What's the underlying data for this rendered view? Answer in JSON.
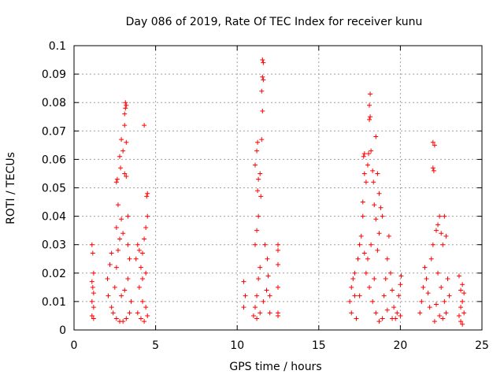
{
  "chart_data": {
    "type": "scatter",
    "title": "Day 086 of 2019, Rate Of TEC Index for receiver kunu",
    "xlabel": "GPS time / hours",
    "ylabel": "ROTI / TECUs",
    "xlim": [
      0,
      25
    ],
    "ylim": [
      0,
      0.1
    ],
    "x_ticks": [
      0,
      5,
      10,
      15,
      20,
      25
    ],
    "x_tick_labels": [
      "0",
      "5",
      "10",
      "15",
      "20",
      "25"
    ],
    "y_ticks": [
      0,
      0.01,
      0.02,
      0.03,
      0.04,
      0.05,
      0.06,
      0.07,
      0.08,
      0.09,
      0.1
    ],
    "y_tick_labels": [
      "0",
      "0.01",
      "0.02",
      "0.03",
      "0.04",
      "0.05",
      "0.06",
      "0.07",
      "0.08",
      "0.09",
      "0.1"
    ],
    "grid": true,
    "marker": "+",
    "color": "#ff0000",
    "series": [
      {
        "name": "ROTI",
        "points": [
          [
            1.1,
            0.03
          ],
          [
            1.15,
            0.027
          ],
          [
            1.2,
            0.02
          ],
          [
            1.1,
            0.017
          ],
          [
            1.2,
            0.013
          ],
          [
            1.1,
            0.01
          ],
          [
            1.2,
            0.008
          ],
          [
            1.1,
            0.005
          ],
          [
            1.2,
            0.004
          ],
          [
            1.15,
            0.015
          ],
          [
            2.05,
            0.018
          ],
          [
            2.2,
            0.023
          ],
          [
            2.3,
            0.027
          ],
          [
            2.1,
            0.012
          ],
          [
            2.3,
            0.008
          ],
          [
            2.5,
            0.015
          ],
          [
            2.6,
            0.022
          ],
          [
            2.7,
            0.028
          ],
          [
            2.8,
            0.032
          ],
          [
            2.6,
            0.036
          ],
          [
            2.7,
            0.044
          ],
          [
            2.6,
            0.052
          ],
          [
            2.65,
            0.053
          ],
          [
            2.8,
            0.061
          ],
          [
            2.85,
            0.057
          ],
          [
            2.9,
            0.067
          ],
          [
            3.0,
            0.063
          ],
          [
            2.9,
            0.039
          ],
          [
            3.0,
            0.034
          ],
          [
            3.1,
            0.072
          ],
          [
            3.1,
            0.076
          ],
          [
            3.15,
            0.078
          ],
          [
            3.2,
            0.079
          ],
          [
            3.15,
            0.08
          ],
          [
            3.2,
            0.066
          ],
          [
            3.1,
            0.055
          ],
          [
            3.2,
            0.054
          ],
          [
            3.3,
            0.04
          ],
          [
            3.3,
            0.03
          ],
          [
            3.4,
            0.025
          ],
          [
            2.4,
            0.006
          ],
          [
            2.6,
            0.004
          ],
          [
            2.8,
            0.003
          ],
          [
            3.0,
            0.003
          ],
          [
            3.2,
            0.004
          ],
          [
            3.4,
            0.006
          ],
          [
            2.9,
            0.012
          ],
          [
            3.1,
            0.014
          ],
          [
            3.3,
            0.018
          ],
          [
            3.5,
            0.01
          ],
          [
            3.8,
            0.025
          ],
          [
            3.9,
            0.03
          ],
          [
            4.0,
            0.028
          ],
          [
            4.1,
            0.022
          ],
          [
            4.2,
            0.027
          ],
          [
            4.3,
            0.032
          ],
          [
            4.4,
            0.036
          ],
          [
            4.5,
            0.04
          ],
          [
            4.45,
            0.047
          ],
          [
            4.5,
            0.048
          ],
          [
            4.3,
            0.072
          ],
          [
            4.0,
            0.015
          ],
          [
            4.2,
            0.01
          ],
          [
            4.4,
            0.008
          ],
          [
            4.5,
            0.005
          ],
          [
            4.3,
            0.003
          ],
          [
            4.1,
            0.004
          ],
          [
            3.9,
            0.006
          ],
          [
            4.2,
            0.018
          ],
          [
            4.4,
            0.02
          ],
          [
            11.1,
            0.008
          ],
          [
            11.2,
            0.012
          ],
          [
            11.3,
            0.018
          ],
          [
            11.4,
            0.022
          ],
          [
            11.1,
            0.03
          ],
          [
            11.2,
            0.035
          ],
          [
            11.3,
            0.04
          ],
          [
            11.25,
            0.049
          ],
          [
            11.3,
            0.053
          ],
          [
            11.1,
            0.058
          ],
          [
            11.2,
            0.063
          ],
          [
            11.25,
            0.066
          ],
          [
            11.4,
            0.055
          ],
          [
            11.45,
            0.047
          ],
          [
            11.5,
            0.067
          ],
          [
            11.55,
            0.077
          ],
          [
            11.5,
            0.084
          ],
          [
            11.6,
            0.088
          ],
          [
            11.55,
            0.089
          ],
          [
            11.6,
            0.094
          ],
          [
            11.55,
            0.095
          ],
          [
            11.0,
            0.005
          ],
          [
            11.2,
            0.004
          ],
          [
            11.4,
            0.006
          ],
          [
            11.6,
            0.01
          ],
          [
            11.8,
            0.014
          ],
          [
            11.9,
            0.019
          ],
          [
            12.0,
            0.012
          ],
          [
            12.0,
            0.006
          ],
          [
            11.85,
            0.025
          ],
          [
            11.7,
            0.03
          ],
          [
            10.4,
            0.017
          ],
          [
            10.5,
            0.012
          ],
          [
            10.4,
            0.008
          ],
          [
            12.5,
            0.03
          ],
          [
            12.5,
            0.028
          ],
          [
            12.5,
            0.023
          ],
          [
            12.5,
            0.015
          ],
          [
            12.5,
            0.006
          ],
          [
            12.5,
            0.005
          ],
          [
            16.9,
            0.01
          ],
          [
            17.0,
            0.006
          ],
          [
            17.1,
            0.018
          ],
          [
            17.2,
            0.012
          ],
          [
            17.3,
            0.004
          ],
          [
            17.4,
            0.025
          ],
          [
            17.5,
            0.03
          ],
          [
            17.6,
            0.033
          ],
          [
            17.7,
            0.04
          ],
          [
            17.7,
            0.045
          ],
          [
            17.8,
            0.055
          ],
          [
            17.75,
            0.061
          ],
          [
            17.8,
            0.062
          ],
          [
            17.9,
            0.052
          ],
          [
            18.0,
            0.058
          ],
          [
            18.05,
            0.062
          ],
          [
            18.1,
            0.074
          ],
          [
            18.15,
            0.075
          ],
          [
            18.1,
            0.079
          ],
          [
            18.15,
            0.083
          ],
          [
            18.2,
            0.063
          ],
          [
            18.3,
            0.056
          ],
          [
            18.35,
            0.052
          ],
          [
            18.4,
            0.044
          ],
          [
            18.5,
            0.039
          ],
          [
            18.5,
            0.068
          ],
          [
            18.6,
            0.055
          ],
          [
            18.7,
            0.048
          ],
          [
            18.8,
            0.043
          ],
          [
            18.9,
            0.04
          ],
          [
            18.7,
            0.034
          ],
          [
            18.2,
            0.03
          ],
          [
            18.0,
            0.025
          ],
          [
            17.9,
            0.02
          ],
          [
            18.1,
            0.015
          ],
          [
            18.3,
            0.01
          ],
          [
            18.5,
            0.006
          ],
          [
            18.7,
            0.003
          ],
          [
            18.9,
            0.004
          ],
          [
            19.0,
            0.012
          ],
          [
            19.1,
            0.018
          ],
          [
            19.2,
            0.025
          ],
          [
            19.3,
            0.033
          ],
          [
            19.4,
            0.02
          ],
          [
            19.5,
            0.014
          ],
          [
            19.6,
            0.008
          ],
          [
            19.7,
            0.004
          ],
          [
            19.8,
            0.006
          ],
          [
            19.9,
            0.012
          ],
          [
            20.0,
            0.016
          ],
          [
            20.05,
            0.019
          ],
          [
            20.0,
            0.005
          ],
          [
            19.5,
            0.004
          ],
          [
            19.2,
            0.007
          ],
          [
            18.4,
            0.018
          ],
          [
            17.5,
            0.012
          ],
          [
            17.2,
            0.02
          ],
          [
            17.0,
            0.015
          ],
          [
            17.8,
            0.027
          ],
          [
            18.6,
            0.028
          ],
          [
            21.2,
            0.006
          ],
          [
            21.3,
            0.01
          ],
          [
            21.4,
            0.015
          ],
          [
            21.5,
            0.022
          ],
          [
            21.6,
            0.018
          ],
          [
            21.7,
            0.013
          ],
          [
            21.8,
            0.008
          ],
          [
            21.9,
            0.025
          ],
          [
            22.0,
            0.03
          ],
          [
            22.05,
            0.056
          ],
          [
            22.0,
            0.057
          ],
          [
            22.1,
            0.065
          ],
          [
            22.0,
            0.066
          ],
          [
            22.2,
            0.035
          ],
          [
            22.3,
            0.037
          ],
          [
            22.4,
            0.04
          ],
          [
            22.5,
            0.034
          ],
          [
            22.6,
            0.03
          ],
          [
            22.7,
            0.04
          ],
          [
            22.8,
            0.033
          ],
          [
            22.3,
            0.02
          ],
          [
            22.5,
            0.015
          ],
          [
            22.7,
            0.01
          ],
          [
            22.8,
            0.006
          ],
          [
            22.6,
            0.004
          ],
          [
            22.4,
            0.005
          ],
          [
            22.2,
            0.009
          ],
          [
            22.9,
            0.018
          ],
          [
            23.0,
            0.012
          ],
          [
            22.1,
            0.003
          ],
          [
            23.6,
            0.019
          ],
          [
            23.7,
            0.014
          ],
          [
            23.8,
            0.01
          ],
          [
            23.9,
            0.006
          ],
          [
            23.7,
            0.003
          ],
          [
            23.6,
            0.005
          ],
          [
            23.8,
            0.016
          ],
          [
            23.9,
            0.013
          ],
          [
            23.7,
            0.008
          ],
          [
            23.8,
            0.002
          ]
        ]
      }
    ]
  }
}
